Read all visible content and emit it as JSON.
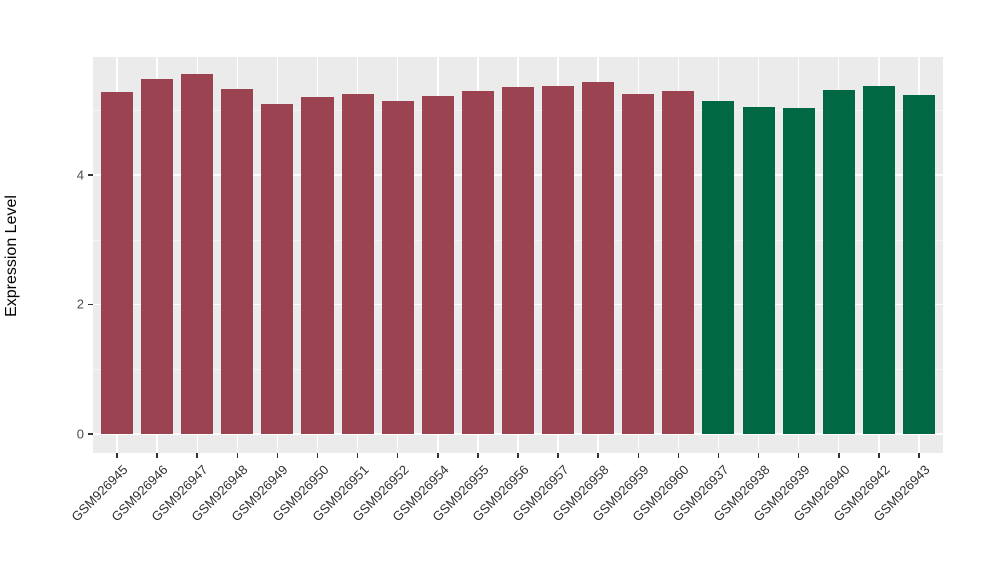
{
  "chart_data": {
    "type": "bar",
    "title": "",
    "xlabel": "",
    "ylabel": "Expression Level",
    "categories": [
      "GSM926945",
      "GSM926946",
      "GSM926947",
      "GSM926948",
      "GSM926949",
      "GSM926950",
      "GSM926951",
      "GSM926952",
      "GSM926954",
      "GSM926955",
      "GSM926956",
      "GSM926957",
      "GSM926958",
      "GSM926959",
      "GSM926960",
      "GSM926937",
      "GSM926938",
      "GSM926939",
      "GSM926940",
      "GSM926942",
      "GSM926943"
    ],
    "values": [
      5.28,
      5.48,
      5.55,
      5.32,
      5.1,
      5.2,
      5.25,
      5.14,
      5.22,
      5.29,
      5.35,
      5.37,
      5.43,
      5.25,
      5.3,
      5.14,
      5.05,
      5.03,
      5.31,
      5.37,
      5.24
    ],
    "groups": [
      "red",
      "red",
      "red",
      "red",
      "red",
      "red",
      "red",
      "red",
      "red",
      "red",
      "red",
      "red",
      "red",
      "red",
      "red",
      "green",
      "green",
      "green",
      "green",
      "green",
      "green"
    ],
    "group_colors": {
      "red": "#9B4350",
      "green": "#006944"
    },
    "yticks": [
      0,
      2,
      4
    ],
    "minor_yticks": [
      1,
      3,
      5
    ],
    "ylim": [
      0,
      5.82
    ],
    "grid": true,
    "legend": "none",
    "panel_bg": "#EBEBEB",
    "grid_major_color": "#FFFFFF",
    "grid_minor_color": "#F5F4F4",
    "axis_text_color": "#4d4d4d"
  }
}
